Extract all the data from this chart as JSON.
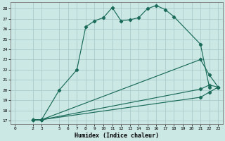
{
  "xlabel": "Humidex (Indice chaleur)",
  "bg_color": "#cce8e4",
  "grid_color": "#aaccca",
  "line_color": "#1a6b5a",
  "xlim": [
    -0.5,
    23.5
  ],
  "ylim": [
    16.7,
    28.6
  ],
  "xticks": [
    0,
    2,
    3,
    5,
    6,
    7,
    8,
    9,
    10,
    11,
    12,
    13,
    14,
    15,
    16,
    17,
    18,
    19,
    20,
    21,
    22,
    23
  ],
  "yticks": [
    17,
    18,
    19,
    20,
    21,
    22,
    23,
    24,
    25,
    26,
    27,
    28
  ],
  "line1_x": [
    2,
    3,
    5,
    7,
    8,
    9,
    10,
    11,
    12,
    13,
    14,
    15,
    16,
    17,
    18,
    21,
    22
  ],
  "line1_y": [
    17.1,
    17.1,
    20.0,
    22.0,
    26.2,
    26.8,
    27.1,
    28.1,
    26.8,
    26.9,
    27.1,
    28.0,
    28.3,
    27.9,
    27.2,
    24.5,
    20.3
  ],
  "line2_x": [
    2,
    3,
    21,
    22,
    23
  ],
  "line2_y": [
    17.1,
    17.1,
    23.0,
    21.5,
    20.3
  ],
  "line3_x": [
    2,
    3,
    21,
    22,
    23
  ],
  "line3_y": [
    17.1,
    17.1,
    20.1,
    20.5,
    20.3
  ],
  "line4_x": [
    2,
    3,
    21,
    22,
    23
  ],
  "line4_y": [
    17.1,
    17.1,
    19.3,
    19.8,
    20.3
  ]
}
